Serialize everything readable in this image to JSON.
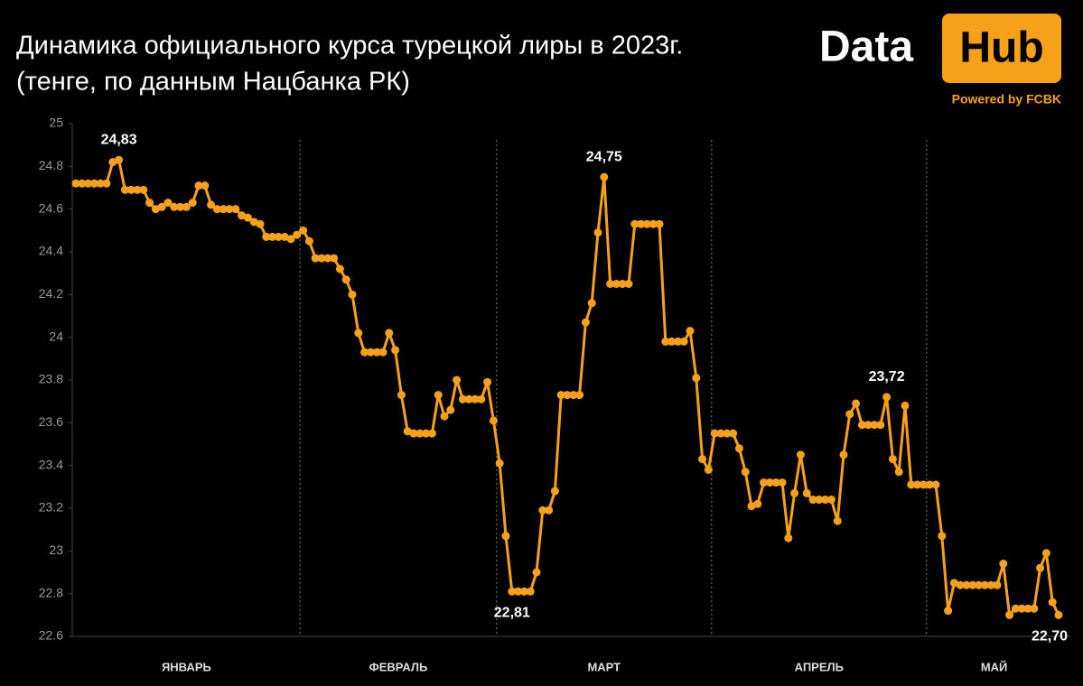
{
  "logo": {
    "left": "Data",
    "right": "Hub",
    "tagline": "Powered by FCBK"
  },
  "chart_data": {
    "type": "line",
    "title": "Динамика официального курса турецкой лиры в 2023г.",
    "subtitle": "(тенге, по данным Нацбанка РК)",
    "color": "#f7a11a",
    "categories": [
      "ЯНВАРЬ",
      "ФЕВРАЛЬ",
      "МАРТ",
      "АПРЕЛЬ",
      "МАЙ"
    ],
    "values": [
      [
        24.72,
        24.72,
        24.72,
        24.72,
        24.72,
        24.72,
        24.82,
        24.83,
        24.69,
        24.69,
        24.69,
        24.69,
        24.63,
        24.6,
        24.61,
        24.63,
        24.61,
        24.61,
        24.61,
        24.63,
        24.71,
        24.71,
        24.62,
        24.6,
        24.6,
        24.6,
        24.6,
        24.57,
        24.56,
        24.54,
        24.53,
        24.47,
        24.47,
        24.47,
        24.47,
        24.46,
        24.48
      ],
      [
        24.5,
        24.45,
        24.37,
        24.37,
        24.37,
        24.37,
        24.32,
        24.27,
        24.2,
        24.02,
        23.93,
        23.93,
        23.93,
        23.93,
        24.02,
        23.94,
        23.73,
        23.56,
        23.55,
        23.55,
        23.55,
        23.55,
        23.73,
        23.63,
        23.66,
        23.8,
        23.71,
        23.71,
        23.71,
        23.71,
        23.79,
        23.61
      ],
      [
        23.41,
        23.07,
        22.81,
        22.81,
        22.81,
        22.81,
        22.9,
        23.19,
        23.19,
        23.28,
        23.73,
        23.73,
        23.73,
        23.73,
        24.07,
        24.16,
        24.49,
        24.75,
        24.25,
        24.25,
        24.25,
        24.25,
        24.53,
        24.53,
        24.53,
        24.53,
        24.53,
        23.98,
        23.98,
        23.98,
        23.98,
        24.03,
        23.81,
        23.43,
        23.38
      ],
      [
        23.55,
        23.55,
        23.55,
        23.55,
        23.48,
        23.37,
        23.21,
        23.22,
        23.32,
        23.32,
        23.32,
        23.32,
        23.06,
        23.27,
        23.45,
        23.27,
        23.24,
        23.24,
        23.24,
        23.24,
        23.14,
        23.45,
        23.64,
        23.69,
        23.59,
        23.59,
        23.59,
        23.59,
        23.72,
        23.43,
        23.37,
        23.68,
        23.31,
        23.31,
        23.31
      ],
      [
        23.31,
        23.31,
        23.07,
        22.72,
        22.85,
        22.84,
        22.84,
        22.84,
        22.84,
        22.84,
        22.84,
        22.84,
        22.94,
        22.7,
        22.73,
        22.73,
        22.73,
        22.73,
        22.92,
        22.99,
        22.76,
        22.7
      ]
    ],
    "value_labels": [
      [
        null,
        null,
        null,
        null,
        null,
        null,
        null,
        "24,83",
        null,
        null,
        null,
        null,
        null,
        null,
        null,
        null,
        null,
        null,
        null,
        null,
        null,
        null,
        null,
        null,
        null,
        null,
        null,
        null,
        null,
        null,
        null,
        null,
        null,
        null,
        null,
        null,
        null
      ],
      [
        null,
        null,
        null,
        null,
        null,
        null,
        null,
        null,
        null,
        null,
        null,
        null,
        null,
        null,
        null,
        null,
        null,
        null,
        null,
        null,
        null,
        null,
        null,
        null,
        null,
        null,
        null,
        null,
        null,
        null,
        null,
        null
      ],
      [
        null,
        null,
        "22,81",
        null,
        null,
        null,
        null,
        null,
        null,
        null,
        null,
        null,
        null,
        null,
        null,
        null,
        null,
        "24,75",
        null,
        null,
        null,
        null,
        null,
        null,
        null,
        null,
        null,
        null,
        null,
        null,
        null,
        null,
        null,
        null,
        null
      ],
      [
        null,
        null,
        null,
        null,
        null,
        null,
        null,
        null,
        null,
        null,
        null,
        null,
        null,
        null,
        null,
        null,
        null,
        null,
        null,
        null,
        null,
        null,
        null,
        null,
        null,
        null,
        null,
        null,
        "23,72",
        null,
        null,
        null,
        null,
        null,
        null
      ],
      [
        null,
        null,
        null,
        null,
        null,
        null,
        null,
        null,
        null,
        null,
        null,
        null,
        null,
        null,
        null,
        null,
        null,
        null,
        null,
        null,
        null,
        "22,70"
      ]
    ],
    "ylim": [
      22.6,
      25
    ],
    "yticks": [
      22.6,
      22.8,
      23,
      23.2,
      23.4,
      23.6,
      23.8,
      24,
      24.2,
      24.4,
      24.6,
      24.8,
      25
    ],
    "grid": false
  }
}
